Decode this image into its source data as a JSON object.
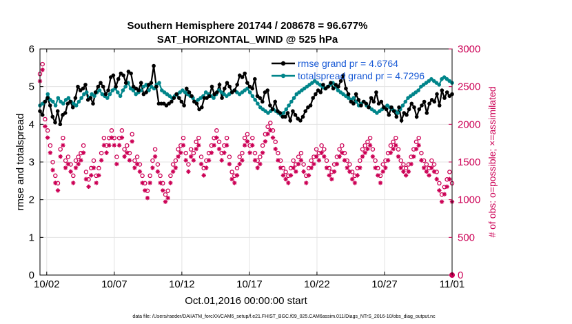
{
  "chart_data": {
    "type": "line",
    "title": "Southern Hemisphere 201744 / 208678 = 96.677%",
    "subtitle": "SAT_HORIZONTAL_WIND @ 525 hPa",
    "xlabel": "Oct.01,2016 00:00:00 start",
    "ylabel": "rmse and totalspread",
    "ylabel_right": "# of obs: o=possible; ×=assimilated",
    "footer": "data file: /Users/raeder/DAI/ATM_forcXX/CAM6_setup/f.e21.FHIST_BGC.f09_025.CAM6assim.011/Diags_NTrS_2016-10/obs_diag_output.nc",
    "x_ticks": [
      "10/02",
      "10/07",
      "10/12",
      "10/17",
      "10/22",
      "10/27",
      "11/01"
    ],
    "x_tick_values": [
      1,
      6,
      11,
      16,
      21,
      26,
      31
    ],
    "xlim": [
      0.5,
      31
    ],
    "ylim": [
      0,
      6
    ],
    "y_ticks": [
      0,
      1,
      2,
      3,
      4,
      5,
      6
    ],
    "ylim_right": [
      0,
      3000
    ],
    "y_ticks_right": [
      0,
      500,
      1000,
      1500,
      2000,
      2500,
      3000
    ],
    "grid": true,
    "legend_position": "top-right",
    "colors": {
      "rmse": "#000000",
      "totalspread": "#00858a",
      "obs": "#cc0055"
    },
    "series": [
      {
        "name": "rmse grand pr = 4.6764",
        "axis": "left",
        "marker": "filled-circle",
        "y_base": 4.75,
        "y_amplitude": 0.35,
        "values": [
          4.35,
          4.25,
          4.6,
          4.7,
          4.5,
          4.2,
          4.05,
          4.35,
          4.0,
          4.25,
          4.3,
          4.55,
          4.6,
          4.45,
          4.7,
          5.0,
          4.9,
          4.95,
          5.05,
          4.65,
          4.7,
          4.55,
          4.85,
          5.0,
          5.1,
          5.0,
          4.8,
          4.9,
          5.25,
          5.3,
          5.0,
          5.2,
          5.35,
          5.3,
          5.1,
          5.4,
          5.35,
          5.0,
          4.95,
          4.9,
          5.1,
          4.8,
          4.85,
          5.05,
          5.1,
          5.55,
          5.0,
          4.55,
          4.55,
          4.55,
          4.5,
          4.55,
          4.6,
          4.7,
          4.8,
          4.7,
          4.6,
          4.5,
          4.95,
          4.85,
          4.75,
          4.6,
          4.55,
          4.4,
          4.45,
          4.7,
          4.7,
          4.75,
          5.0,
          4.8,
          4.85,
          5.05,
          4.7,
          4.95,
          5.1,
          5.0,
          4.85,
          4.9,
          5.05,
          5.3,
          5.25,
          5.35,
          5.1,
          5.0,
          4.95,
          5.2,
          4.75,
          4.7,
          4.6,
          4.85,
          4.9,
          4.5,
          4.4,
          4.6,
          4.35,
          4.3,
          4.2,
          4.2,
          4.3,
          4.1,
          4.35,
          4.25,
          4.15,
          4.1,
          4.2,
          4.35,
          4.45,
          4.5,
          4.7,
          4.8,
          4.9,
          4.85,
          5.05,
          4.95,
          5.0,
          5.1,
          4.95,
          5.05,
          5.0,
          5.15,
          5.3,
          4.95,
          4.8,
          4.6,
          4.55,
          4.8,
          4.65,
          4.5,
          4.6,
          4.55,
          4.45,
          4.7,
          4.6,
          4.85,
          4.55,
          4.6,
          4.45,
          4.4,
          4.25,
          4.45,
          4.35,
          4.2,
          4.45,
          4.1,
          4.3,
          4.25,
          4.4,
          4.55,
          4.45,
          4.2,
          4.4,
          4.5,
          4.6,
          4.3,
          4.55,
          4.65,
          4.6,
          4.8,
          4.5,
          4.9,
          4.7,
          4.85,
          4.75,
          4.8
        ]
      },
      {
        "name": "totalspread grand pr = 4.7296",
        "axis": "left",
        "marker": "filled-circle",
        "y_base": 4.7,
        "y_amplitude": 0.22,
        "values": [
          4.5,
          4.55,
          4.6,
          4.8,
          4.65,
          4.6,
          4.5,
          4.7,
          4.6,
          4.55,
          4.65,
          4.7,
          4.6,
          4.55,
          4.5,
          4.6,
          4.7,
          4.8,
          4.85,
          4.7,
          4.8,
          4.75,
          4.85,
          4.9,
          4.8,
          4.75,
          4.7,
          4.8,
          4.9,
          4.95,
          4.85,
          4.75,
          4.9,
          5.0,
          5.1,
          4.95,
          4.9,
          4.8,
          4.85,
          4.9,
          5.0,
          5.05,
          4.9,
          5.0,
          4.95,
          5.05,
          5.1,
          4.9,
          4.85,
          4.8,
          4.75,
          4.7,
          4.75,
          4.8,
          4.85,
          4.9,
          4.85,
          4.8,
          4.75,
          4.7,
          4.6,
          4.65,
          4.7,
          4.75,
          4.85,
          4.8,
          4.75,
          4.7,
          4.8,
          4.9,
          4.85,
          4.8,
          4.75,
          4.8,
          4.85,
          4.9,
          4.85,
          4.8,
          4.85,
          4.9,
          4.95,
          4.85,
          4.75,
          4.65,
          4.55,
          4.45,
          4.4,
          4.35,
          4.3,
          4.35,
          4.4,
          4.35,
          4.3,
          4.25,
          4.3,
          4.4,
          4.5,
          4.6,
          4.7,
          4.8,
          4.85,
          4.9,
          4.95,
          5.0,
          5.05,
          5.1,
          5.15,
          5.1,
          5.05,
          5.0,
          4.95,
          5.0,
          5.05,
          5.1,
          5.0,
          4.9,
          4.85,
          4.8,
          4.75,
          4.7,
          4.65,
          4.7,
          4.6,
          4.5,
          4.55,
          4.6,
          4.5,
          4.45,
          4.4,
          4.35,
          4.3,
          4.35,
          4.4,
          4.45,
          4.5,
          4.45,
          4.4,
          4.35,
          4.3,
          4.4,
          4.5,
          4.6,
          4.7,
          4.75,
          4.8,
          4.85,
          4.9,
          5.0,
          5.05,
          5.1,
          5.15,
          5.2,
          5.15,
          5.1,
          5.05,
          5.2,
          5.25,
          5.2,
          5.15,
          5.1
        ]
      },
      {
        "name": "obs possible",
        "axis": "right",
        "marker": "open-circle",
        "values": [
          2650,
          2780,
          2050,
          1900,
          1700,
          1480,
          1300,
          1200,
          1650,
          1800,
          1500,
          1550,
          1450,
          1300,
          1500,
          1550,
          1600,
          1700,
          1350,
          1250,
          1400,
          1500,
          1300,
          1400,
          1600,
          1800,
          1700,
          1800,
          1900,
          1800,
          1550,
          1800,
          1900,
          1650,
          1700,
          1600,
          1850,
          1500,
          1550,
          1450,
          1300,
          1200,
          1100,
          1300,
          1500,
          1650,
          1450,
          1300,
          1200,
          1050,
          1100,
          1300,
          1450,
          1500,
          1650,
          1700,
          1800,
          1600,
          1450,
          1650,
          1600,
          1750,
          1800,
          1550,
          1400,
          1500,
          1600,
          1700,
          1800,
          1900,
          1750,
          1600,
          1700,
          1800,
          1550,
          1350,
          1300,
          1400,
          1550,
          1600,
          1800,
          1850,
          1700,
          1800,
          1600,
          1500,
          1550,
          1700,
          1850,
          1950,
          2000,
          1900,
          1750,
          1600,
          1500,
          1400,
          1350,
          1300,
          1400,
          1500,
          1450,
          1550,
          1600,
          1450,
          1300,
          1400,
          1500,
          1550,
          1650,
          1600,
          1700,
          1650,
          1500,
          1400,
          1350,
          1450,
          1550,
          1650,
          1700,
          1600,
          1500,
          1450,
          1350,
          1300,
          1400,
          1500,
          1650,
          1700,
          1750,
          1800,
          1650,
          1500,
          1400,
          1300,
          1450,
          1500,
          1600,
          1700,
          1750,
          1800,
          1650,
          1500,
          1450,
          1400,
          1450,
          1550,
          1650,
          1750,
          1800,
          1600,
          1500,
          1450,
          1400,
          1500,
          1450,
          1350,
          1200,
          1050,
          1150,
          1250,
          1350,
          1200
        ]
      },
      {
        "name": "obs assimilated",
        "axis": "right",
        "marker": "asterisk",
        "values": [
          2600,
          2750,
          2000,
          1850,
          1650,
          1420,
          1250,
          1150,
          1600,
          1750,
          1450,
          1500,
          1400,
          1250,
          1450,
          1500,
          1550,
          1650,
          1300,
          1200,
          1350,
          1450,
          1250,
          1350,
          1550,
          1750,
          1650,
          1750,
          1850,
          1750,
          1500,
          1750,
          1850,
          1600,
          1650,
          1550,
          1800,
          1450,
          1500,
          1400,
          1250,
          1150,
          1050,
          1250,
          1450,
          1600,
          1400,
          1250,
          1150,
          1000,
          1050,
          1250,
          1400,
          1450,
          1600,
          1650,
          1750,
          1550,
          1400,
          1600,
          1550,
          1700,
          1750,
          1500,
          1350,
          1450,
          1550,
          1650,
          1750,
          1850,
          1700,
          1550,
          1650,
          1750,
          1500,
          1300,
          1250,
          1350,
          1500,
          1550,
          1750,
          1800,
          1650,
          1750,
          1550,
          1450,
          1500,
          1650,
          1800,
          1900,
          1950,
          1850,
          1700,
          1550,
          1450,
          1350,
          1300,
          1250,
          1350,
          1450,
          1400,
          1500,
          1550,
          1400,
          1250,
          1350,
          1450,
          1500,
          1600,
          1550,
          1650,
          1600,
          1450,
          1350,
          1300,
          1400,
          1500,
          1600,
          1650,
          1550,
          1450,
          1400,
          1300,
          1250,
          1350,
          1450,
          1600,
          1650,
          1700,
          1750,
          1600,
          1450,
          1350,
          1250,
          1400,
          1450,
          1550,
          1650,
          1700,
          1750,
          1600,
          1450,
          1400,
          1350,
          1400,
          1500,
          1600,
          1700,
          1750,
          1550,
          1450,
          1400,
          1350,
          1450,
          1400,
          1300,
          1150,
          1000,
          1100,
          1200,
          1300,
          1000
        ]
      }
    ]
  }
}
